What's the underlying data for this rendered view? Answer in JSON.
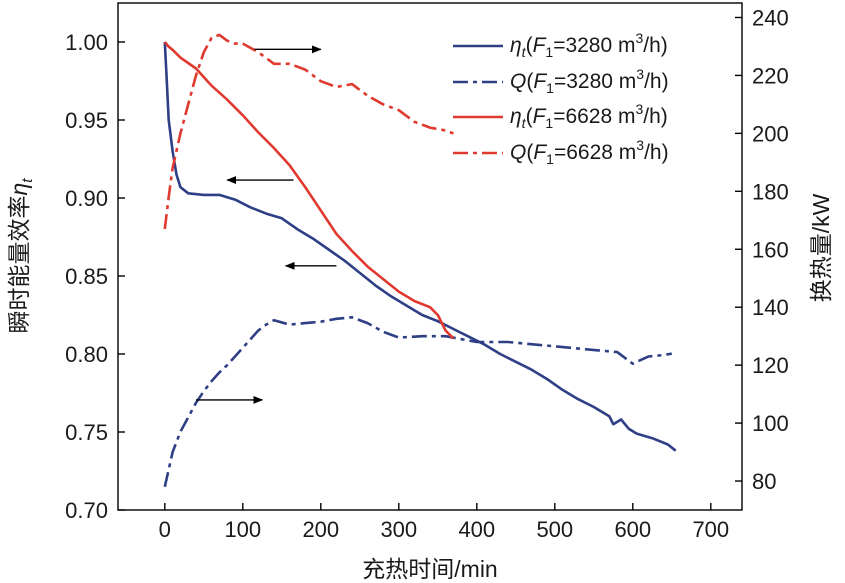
{
  "chart_data": {
    "type": "line",
    "title": "",
    "xlabel": "充热时间/min",
    "ylabel_left": "瞬时能量效率ηt",
    "ylabel_right": "换热量/kW",
    "xlim": [
      -60,
      740
    ],
    "xticks": [
      0,
      100,
      200,
      300,
      400,
      500,
      600,
      700
    ],
    "ylim_left": [
      0.7,
      1.025
    ],
    "yticks_left": [
      0.7,
      0.75,
      0.8,
      0.85,
      0.9,
      0.95,
      1.0
    ],
    "ytick_labels_left": [
      "0.70",
      "0.75",
      "0.80",
      "0.85",
      "0.90",
      "0.95",
      "1.00"
    ],
    "ylim_right": [
      70,
      245
    ],
    "yticks_right": [
      80,
      100,
      120,
      140,
      160,
      180,
      200,
      220,
      240
    ],
    "grid": false,
    "legend_position": "top-right",
    "series": [
      {
        "name": "ηt(F1=3280 m3/h)",
        "legend": {
          "main": "η",
          "sub1": "t",
          "mid": "(",
          "f": "F",
          "sub2": "1",
          "rest": "=3280 m",
          "sup": "3",
          "end": "/h)"
        },
        "axis": "left",
        "color": "#2e3f86",
        "style": "solid",
        "x": [
          0,
          2,
          5,
          10,
          15,
          20,
          30,
          50,
          70,
          90,
          110,
          130,
          150,
          170,
          190,
          210,
          230,
          250,
          270,
          290,
          310,
          330,
          350,
          370,
          390,
          410,
          430,
          450,
          470,
          490,
          510,
          530,
          550,
          570,
          575,
          585,
          595,
          605,
          625,
          645,
          655
        ],
        "y": [
          1.0,
          0.98,
          0.95,
          0.93,
          0.915,
          0.907,
          0.903,
          0.902,
          0.902,
          0.899,
          0.894,
          0.89,
          0.887,
          0.88,
          0.874,
          0.867,
          0.86,
          0.852,
          0.844,
          0.837,
          0.831,
          0.825,
          0.821,
          0.816,
          0.811,
          0.806,
          0.8,
          0.795,
          0.79,
          0.784,
          0.777,
          0.771,
          0.766,
          0.76,
          0.755,
          0.758,
          0.752,
          0.749,
          0.746,
          0.742,
          0.738
        ]
      },
      {
        "name": "Q(F1=3280 m3/h)",
        "legend": {
          "main": "Q",
          "sub1": "",
          "mid": "(",
          "f": "F",
          "sub2": "1",
          "rest": "=3280 m",
          "sup": "3",
          "end": "/h)"
        },
        "axis": "right",
        "color": "#2e3f86",
        "style": "dashdot",
        "x": [
          0,
          10,
          20,
          30,
          40,
          50,
          60,
          70,
          80,
          90,
          100,
          110,
          120,
          130,
          140,
          160,
          180,
          200,
          220,
          240,
          260,
          280,
          300,
          330,
          360,
          400,
          440,
          480,
          520,
          560,
          580,
          600,
          620,
          640,
          650
        ],
        "y": [
          78,
          90,
          97,
          102,
          107,
          111,
          114.5,
          117.5,
          120,
          123,
          126,
          129,
          132,
          134,
          135.5,
          134,
          134.5,
          135,
          136,
          136.5,
          134.5,
          131.5,
          129.5,
          130,
          130,
          128,
          128,
          127,
          126,
          125,
          124.5,
          120.5,
          123,
          123.5,
          124
        ]
      },
      {
        "name": "ηt(F1=6628 m3/h)",
        "legend": {
          "main": "η",
          "sub1": "t",
          "mid": "(",
          "f": "F",
          "sub2": "1",
          "rest": "=6628 m",
          "sup": "3",
          "end": "/h)"
        },
        "axis": "left",
        "color": "#e03a30",
        "style": "solid",
        "x": [
          0,
          5,
          10,
          20,
          40,
          60,
          80,
          100,
          120,
          140,
          160,
          180,
          200,
          220,
          240,
          260,
          280,
          300,
          320,
          340,
          350,
          360,
          370
        ],
        "y": [
          1.0,
          0.997,
          0.995,
          0.99,
          0.983,
          0.972,
          0.963,
          0.953,
          0.942,
          0.932,
          0.921,
          0.907,
          0.892,
          0.877,
          0.866,
          0.856,
          0.848,
          0.84,
          0.834,
          0.83,
          0.825,
          0.815,
          0.81
        ]
      },
      {
        "name": "Q(F1=6628 m3/h)",
        "legend": {
          "main": "Q",
          "sub1": "",
          "mid": "(",
          "f": "F",
          "sub2": "1",
          "rest": "=6628 m",
          "sup": "3",
          "end": "/h)"
        },
        "axis": "right",
        "color": "#e03a30",
        "style": "dashdot",
        "x": [
          0,
          5,
          10,
          15,
          20,
          30,
          40,
          50,
          60,
          70,
          80,
          90,
          100,
          120,
          140,
          160,
          180,
          200,
          220,
          240,
          260,
          280,
          300,
          320,
          340,
          360,
          370
        ],
        "y": [
          167,
          178,
          188,
          194,
          200,
          210,
          220,
          228,
          233,
          234,
          232,
          231,
          231,
          228,
          224,
          224,
          222,
          218,
          216,
          217,
          213,
          210,
          208,
          204,
          202,
          201,
          200
        ]
      }
    ],
    "arrows": [
      {
        "from_x": 115,
        "to_x": 200,
        "axis": "right",
        "value": 229,
        "direction": "right"
      },
      {
        "from_x": 165,
        "to_x": 80,
        "axis": "left",
        "value": 0.9115,
        "direction": "left"
      },
      {
        "from_x": 220,
        "to_x": 155,
        "axis": "left",
        "value": 0.8565,
        "direction": "left"
      },
      {
        "from_x": 40,
        "to_x": 125,
        "axis": "right",
        "value": 108,
        "direction": "right"
      }
    ]
  }
}
